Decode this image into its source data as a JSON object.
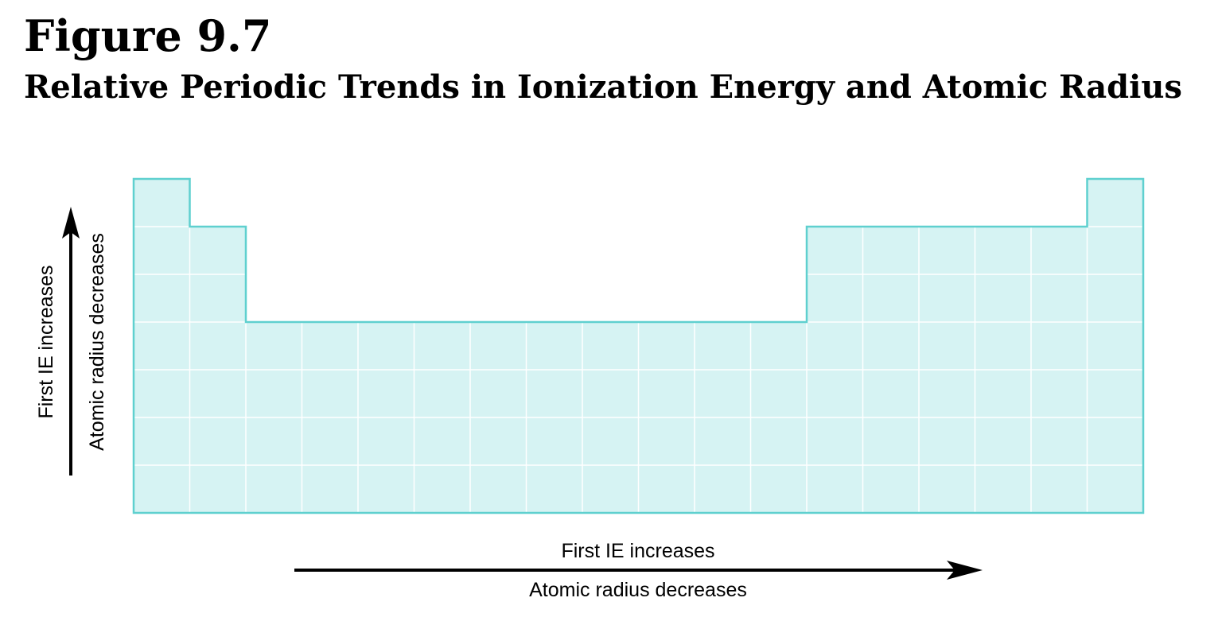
{
  "figure": {
    "title": "Figure 9.7",
    "subtitle": "Relative Periodic Trends in Ionization Energy and Atomic Radius"
  },
  "colors": {
    "cell_fill": "#d6f3f3",
    "outline": "#5fd0cf",
    "gridline": "#ffffff",
    "arrow": "#000000"
  },
  "table": {
    "columns": 18,
    "rows": 7,
    "column_heights": [
      7,
      6,
      4,
      4,
      4,
      4,
      4,
      4,
      4,
      4,
      4,
      4,
      6,
      6,
      6,
      6,
      6,
      7
    ]
  },
  "vertical_trend": {
    "label_1": "First IE increases",
    "label_2": "Atomic radius decreases",
    "direction": "up"
  },
  "horizontal_trend": {
    "label_1": "First IE increases",
    "label_2": "Atomic radius decreases",
    "direction": "right"
  }
}
